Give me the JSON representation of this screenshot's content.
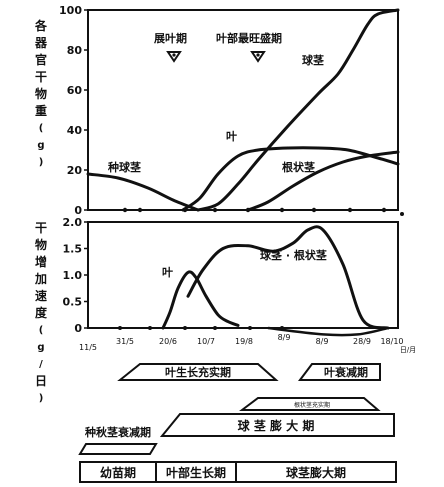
{
  "chart_data": [
    {
      "type": "line",
      "ylabel": "各器官干物重(g)",
      "ylim": [
        0,
        100
      ],
      "yticks": [
        0,
        20,
        40,
        60,
        80,
        100
      ],
      "series": [
        {
          "name": "种球茎",
          "points": [
            [
              0,
              18
            ],
            [
              30,
              16
            ],
            [
              60,
              11
            ],
            [
              85,
              5
            ],
            [
              110,
              0
            ]
          ]
        },
        {
          "name": "叶",
          "points": [
            [
              95,
              0
            ],
            [
              112,
              6
            ],
            [
              130,
              18
            ],
            [
              150,
              27
            ],
            [
              170,
              30
            ],
            [
              200,
              31
            ],
            [
              230,
              31
            ],
            [
              260,
              30
            ],
            [
              290,
              26
            ],
            [
              310,
              23
            ]
          ]
        },
        {
          "name": "球茎",
          "points": [
            [
              110,
              0
            ],
            [
              130,
              3
            ],
            [
              150,
              13
            ],
            [
              170,
              25
            ],
            [
              200,
              42
            ],
            [
              230,
              58
            ],
            [
              250,
              68
            ],
            [
              265,
              80
            ],
            [
              280,
              93
            ],
            [
              290,
              98
            ],
            [
              310,
              100
            ]
          ]
        },
        {
          "name": "根状茎",
          "points": [
            [
              160,
              0
            ],
            [
              180,
              4
            ],
            [
              205,
              12
            ],
            [
              230,
              19
            ],
            [
              255,
              24
            ],
            [
              280,
              27
            ],
            [
              310,
              29
            ]
          ]
        }
      ],
      "annotations": {
        "stages": [
          "展叶期",
          "叶部最旺盛期"
        ]
      }
    },
    {
      "type": "line",
      "ylabel": "干物增加速度(g/日)",
      "ylim": [
        0,
        2.0
      ],
      "yticks": [
        "0",
        "0.5",
        "1.0",
        "1.5",
        "2.0"
      ],
      "series": [
        {
          "name": "叶",
          "points": [
            [
              75,
              0
            ],
            [
              82,
              0.3
            ],
            [
              90,
              0.75
            ],
            [
              100,
              1.05
            ],
            [
              108,
              0.95
            ],
            [
              118,
              0.6
            ],
            [
              130,
              0.25
            ],
            [
              140,
              0.12
            ],
            [
              150,
              0.05
            ]
          ]
        },
        {
          "name": "球茎 · 根状茎",
          "points": [
            [
              100,
              0.6
            ],
            [
              115,
              1.1
            ],
            [
              135,
              1.5
            ],
            [
              160,
              1.55
            ],
            [
              185,
              1.45
            ],
            [
              205,
              1.6
            ],
            [
              220,
              1.85
            ],
            [
              235,
              1.85
            ],
            [
              255,
              1.2
            ],
            [
              275,
              0.15
            ],
            [
              300,
              0
            ]
          ]
        }
      ],
      "dips": [
        [
          180,
          0
        ],
        [
          235,
          -0.12
        ],
        [
          270,
          -0.12
        ],
        [
          300,
          0
        ]
      ],
      "x_tick_labels": [
        "11/5",
        "31/5",
        "20/6",
        "10/7",
        "19/8",
        "8/9",
        "8/9",
        "28/9",
        "18/10"
      ],
      "x_unit": "日/月"
    }
  ],
  "stages": {
    "row1": [
      "叶生长充实期",
      "叶衰减期"
    ],
    "row2_small": "根状茎充实期",
    "row3": [
      "种秋茎衰减期",
      "球 茎 膨 大 期"
    ],
    "row4": [
      "幼苗期",
      "叶部生长期",
      "球茎膨大期"
    ]
  }
}
